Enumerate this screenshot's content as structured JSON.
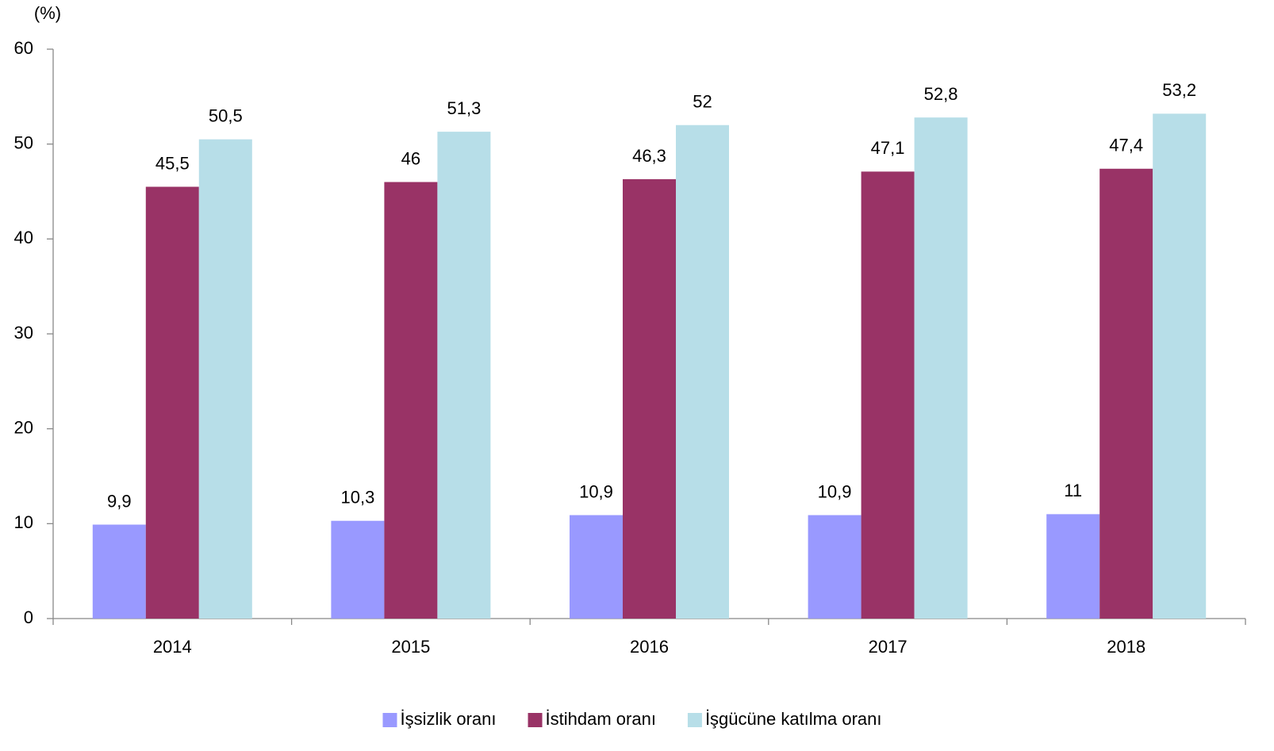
{
  "chart_data": {
    "type": "bar",
    "y_label": "(%)",
    "categories": [
      "2014",
      "2015",
      "2016",
      "2017",
      "2018"
    ],
    "series": [
      {
        "name": "İşsizlik oranı",
        "color": "#9999ff",
        "values": [
          9.9,
          10.3,
          10.9,
          10.9,
          11
        ],
        "value_labels": [
          "9,9",
          "10,3",
          "10,9",
          "10,9",
          "11"
        ]
      },
      {
        "name": "İstihdam oranı",
        "color": "#993366",
        "values": [
          45.5,
          46,
          46.3,
          47.1,
          47.4
        ],
        "value_labels": [
          "45,5",
          "46",
          "46,3",
          "47,1",
          "47,4"
        ]
      },
      {
        "name": "İşgücüne katılma oranı",
        "color": "#b7dee8",
        "values": [
          50.5,
          51.3,
          52,
          52.8,
          53.2
        ],
        "value_labels": [
          "50,5",
          "51,3",
          "52",
          "52,8",
          "53,2"
        ]
      }
    ],
    "ylim": [
      0,
      60
    ],
    "yticks": [
      0,
      10,
      20,
      30,
      40,
      50,
      60
    ],
    "legend": "bottom"
  }
}
